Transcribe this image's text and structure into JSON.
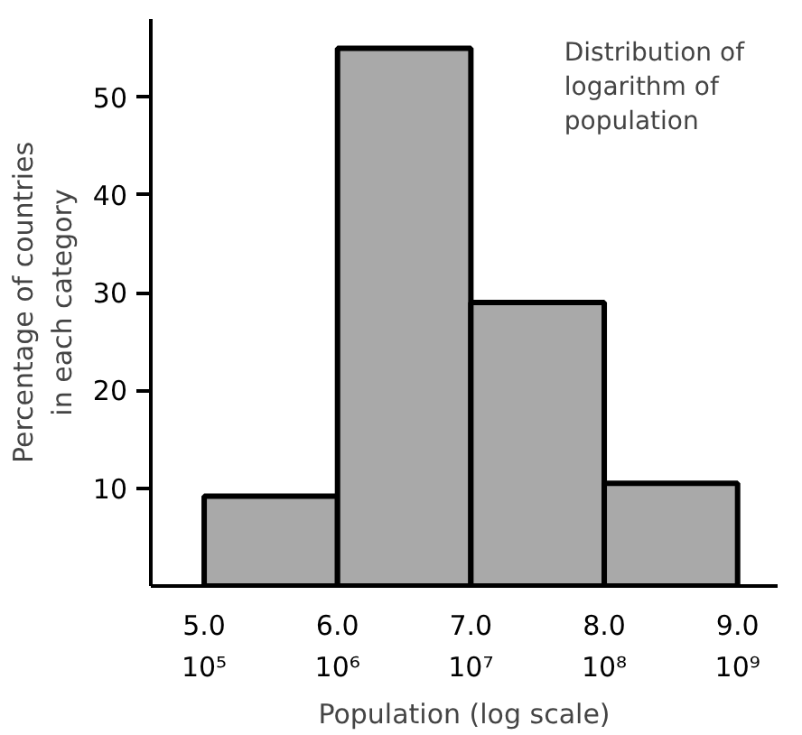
{
  "chart_data": {
    "type": "histogram",
    "xlabel": "Population (log scale)",
    "ylabel": "Percentage of countries\nin each category",
    "annotations": [
      "Distribution of\nlogarithm of\npopulation"
    ],
    "bins": [
      5,
      6,
      7,
      8,
      9
    ],
    "values": [
      9.2,
      55,
      29,
      10.5
    ],
    "color": "#a9a9a9",
    "xlim": [
      4.6,
      9.3
    ],
    "ylim": [
      0,
      58
    ],
    "xticks": [
      {
        "value": 5,
        "label": "5.0"
      },
      {
        "value": 6,
        "label": "6.0"
      },
      {
        "value": 7,
        "label": "7.0"
      },
      {
        "value": 8,
        "label": "8.0"
      },
      {
        "value": 9,
        "label": "9.0"
      }
    ],
    "x2lim": [
      39811,
      1995262315
    ],
    "log": "x2",
    "x2ticks": [
      {
        "value": 100000,
        "label": "10⁵"
      },
      {
        "value": 1000000,
        "label": "10⁶"
      },
      {
        "value": 10000000,
        "label": "10⁷"
      },
      {
        "value": 100000000,
        "label": "10⁸"
      },
      {
        "value": 1000000000,
        "label": "10⁹"
      }
    ],
    "yticks": [
      10,
      20,
      30,
      40,
      50
    ],
    "grid": false
  }
}
